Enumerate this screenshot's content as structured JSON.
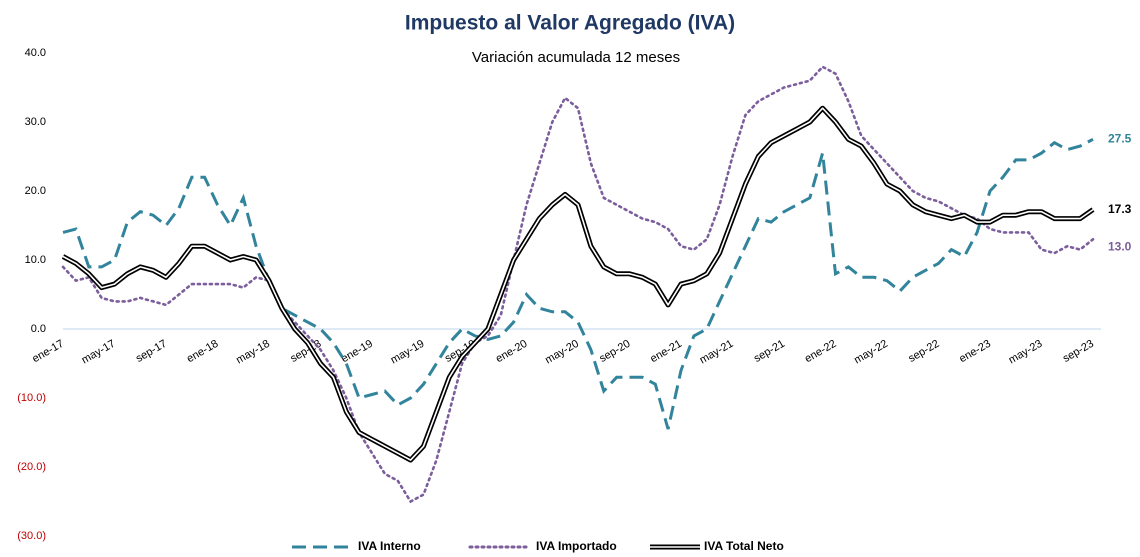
{
  "chart_data": {
    "type": "line",
    "title": "Impuesto al Valor Agregado (IVA)",
    "subtitle": "Variación acumulada 12 meses",
    "categories": [
      "ene-17",
      null,
      null,
      null,
      "may-17",
      null,
      null,
      null,
      "sep-17",
      null,
      null,
      null,
      "ene-18",
      null,
      null,
      null,
      "may-18",
      null,
      null,
      null,
      "sep-18",
      null,
      null,
      null,
      "ene-19",
      null,
      null,
      null,
      "may-19",
      null,
      null,
      null,
      "sep-19",
      null,
      null,
      null,
      "ene-20",
      null,
      null,
      null,
      "may-20",
      null,
      null,
      null,
      "sep-20",
      null,
      null,
      null,
      "ene-21",
      null,
      null,
      null,
      "may-21",
      null,
      null,
      null,
      "sep-21",
      null,
      null,
      null,
      "ene-22",
      null,
      null,
      null,
      "may-22",
      null,
      null,
      null,
      "sep-22",
      null,
      null,
      null,
      "ene-23",
      null,
      null,
      null,
      "may-23",
      null,
      null,
      null,
      "sep-23"
    ],
    "series": [
      {
        "name": "IVA Interno",
        "color": "#31849b",
        "style": "dashed",
        "end_label": "27.5",
        "values": [
          14,
          14.5,
          9,
          9,
          10,
          15.5,
          17,
          16.5,
          15,
          17.5,
          22,
          22,
          18,
          15,
          19,
          12,
          7,
          3,
          2,
          1,
          0,
          -2,
          -5,
          -10,
          -9.5,
          -9,
          -11,
          -10,
          -8,
          -5,
          -2,
          0,
          -1,
          -1.5,
          -1,
          1,
          5,
          3,
          2.5,
          2.5,
          1,
          -3,
          -9,
          -7,
          -7,
          -7,
          -8,
          -14.5,
          -6,
          -1,
          0,
          4,
          8,
          12,
          16,
          15.5,
          17,
          18,
          19,
          25.5,
          8,
          9,
          7.5,
          7.5,
          7,
          5.5,
          7.5,
          8.5,
          9.5,
          11.5,
          10.5,
          14,
          20,
          22,
          24.5,
          24.5,
          25.5,
          27,
          26,
          26.5,
          27.5
        ]
      },
      {
        "name": "IVA Importado",
        "color": "#7b5e9b",
        "style": "dotted",
        "end_label": "13.0",
        "values": [
          9,
          7,
          7.5,
          4.5,
          4,
          4,
          4.5,
          4,
          3.5,
          5,
          6.5,
          6.5,
          6.5,
          6.5,
          6,
          7.5,
          7,
          3,
          1,
          -1,
          -3,
          -6,
          -10,
          -15,
          -18,
          -21,
          -22,
          -25,
          -24,
          -19,
          -12,
          -5,
          -2,
          -1,
          2,
          10,
          18,
          24,
          30,
          33.5,
          32,
          24,
          19,
          18,
          17,
          16,
          15.5,
          14.5,
          12,
          11.5,
          13,
          18,
          25,
          31,
          33,
          34,
          35,
          35.5,
          36,
          38,
          37,
          33,
          28,
          26,
          24,
          22,
          20,
          19,
          18.5,
          17.5,
          16.5,
          16,
          14.5,
          14,
          14,
          14,
          11.5,
          11,
          12,
          11.5,
          13
        ]
      },
      {
        "name": "IVA Total Neto",
        "color": "#000000",
        "style": "double",
        "end_label": "17.3",
        "values": [
          10.5,
          9.5,
          8,
          6,
          6.5,
          8,
          9,
          8.5,
          7.5,
          9.5,
          12,
          12,
          11,
          10,
          10.5,
          10,
          7,
          3,
          0,
          -2,
          -5,
          -7,
          -12,
          -15,
          -16,
          -17,
          -18,
          -19,
          -17,
          -12,
          -7,
          -4,
          -2,
          0,
          5,
          10,
          13,
          16,
          18,
          19.5,
          18,
          12,
          9,
          8,
          8,
          7.5,
          6.5,
          3.5,
          6.5,
          7,
          8,
          11,
          16,
          21,
          25,
          27,
          28,
          29,
          30,
          32,
          30,
          27.5,
          26.5,
          24,
          21,
          20,
          18,
          17,
          16.5,
          16,
          16.5,
          15.5,
          15.5,
          16.5,
          16.5,
          17,
          17,
          16,
          16,
          16,
          17.3
        ]
      }
    ],
    "ylim": [
      -30,
      40
    ],
    "yticks": [
      {
        "value": -30,
        "label": "(30.0)"
      },
      {
        "value": -20,
        "label": "(20.0)"
      },
      {
        "value": -10,
        "label": "(10.0)"
      },
      {
        "value": 0,
        "label": "0.0"
      },
      {
        "value": 10,
        "label": "10.0"
      },
      {
        "value": 20,
        "label": "20.0"
      },
      {
        "value": 30,
        "label": "30.0"
      },
      {
        "value": 40,
        "label": "40.0"
      }
    ],
    "negative_tick_color": "#c00000",
    "legend": "bottom"
  }
}
